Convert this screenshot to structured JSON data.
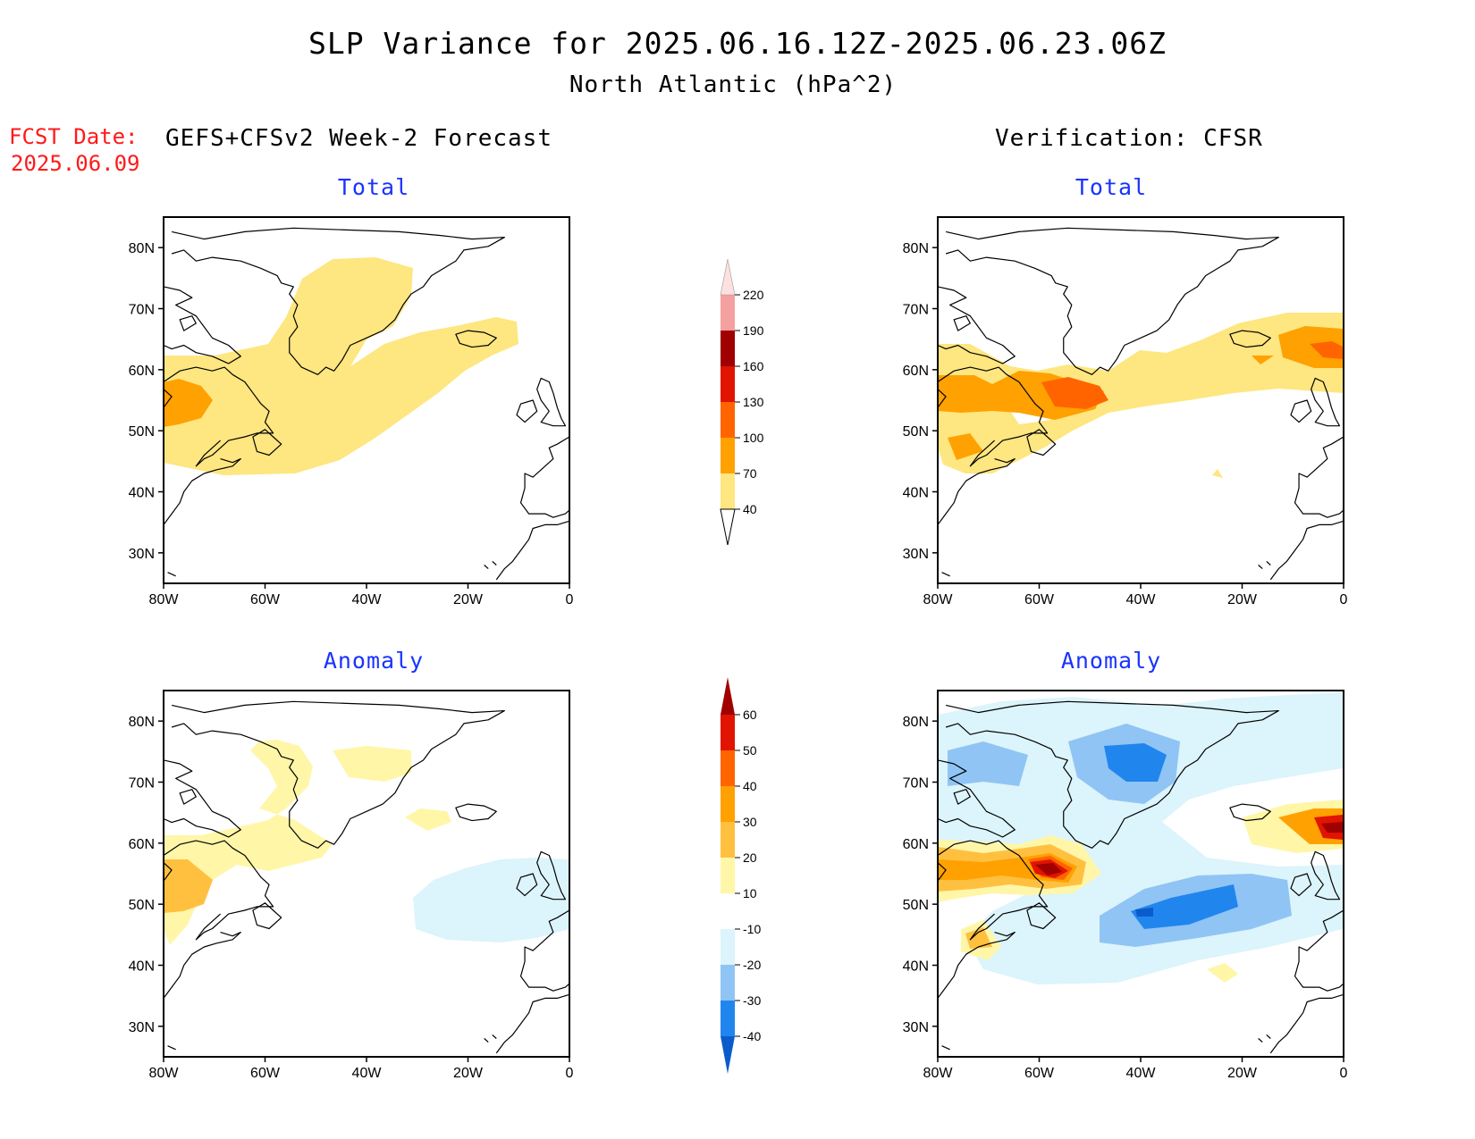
{
  "title": "SLP Variance for 2025.06.16.12Z-2025.06.23.06Z",
  "subtitle": "North Atlantic (hPa^2)",
  "fcst_label": "FCST Date:",
  "fcst_date": "2025.06.09",
  "left_header": "GEFS+CFSv2 Week-2 Forecast",
  "right_header": "Verification: CFSR",
  "panels": {
    "fc_total_title": "Total",
    "fc_anom_title": "Anomaly",
    "ver_total_title": "Total",
    "ver_anom_title": "Anomaly"
  },
  "axes": {
    "lat_ticks": [
      "80N",
      "70N",
      "60N",
      "50N",
      "40N",
      "30N"
    ],
    "lon_ticks": [
      "80W",
      "60W",
      "40W",
      "20W",
      "0"
    ],
    "lat_range": [
      25,
      85
    ],
    "lon_range": [
      -80,
      0
    ]
  },
  "colorbars": {
    "total": {
      "levels": [
        "40",
        "70",
        "100",
        "130",
        "160",
        "190",
        "220"
      ],
      "colors": [
        "#fee680",
        "#ffa100",
        "#ff6400",
        "#e01400",
        "#a00000",
        "#f4a0a0",
        "#fde0e0"
      ]
    },
    "anomaly": {
      "levels": [
        "-40",
        "-30",
        "-20",
        "-10",
        "10",
        "20",
        "30",
        "40",
        "50",
        "60"
      ],
      "colors": [
        "#0a5ccc",
        "#2185ee",
        "#90c4f4",
        "#dcf4fb",
        "#ffffff",
        "#fff6a8",
        "#ffc040",
        "#ffa100",
        "#ff6400",
        "#e01400",
        "#a00000"
      ]
    }
  },
  "chart_data": {
    "type": "heatmap",
    "region": "North Atlantic",
    "units": "hPa^2",
    "panels": [
      {
        "name": "GEFS+CFSv2 Week-2 Forecast Total",
        "max_value_range": "70-100",
        "max_center": "55N 75W"
      },
      {
        "name": "GEFS+CFSv2 Week-2 Forecast Anomaly",
        "max_value_range": "20-30",
        "min_value_range": "-10 to -20"
      },
      {
        "name": "Verification CFSR Total",
        "max_value_range": "100-130",
        "max_center": "55N 55W"
      },
      {
        "name": "Verification CFSR Anomaly",
        "max_value_range": "60+",
        "min_value_range": "-30 to -40"
      }
    ]
  }
}
